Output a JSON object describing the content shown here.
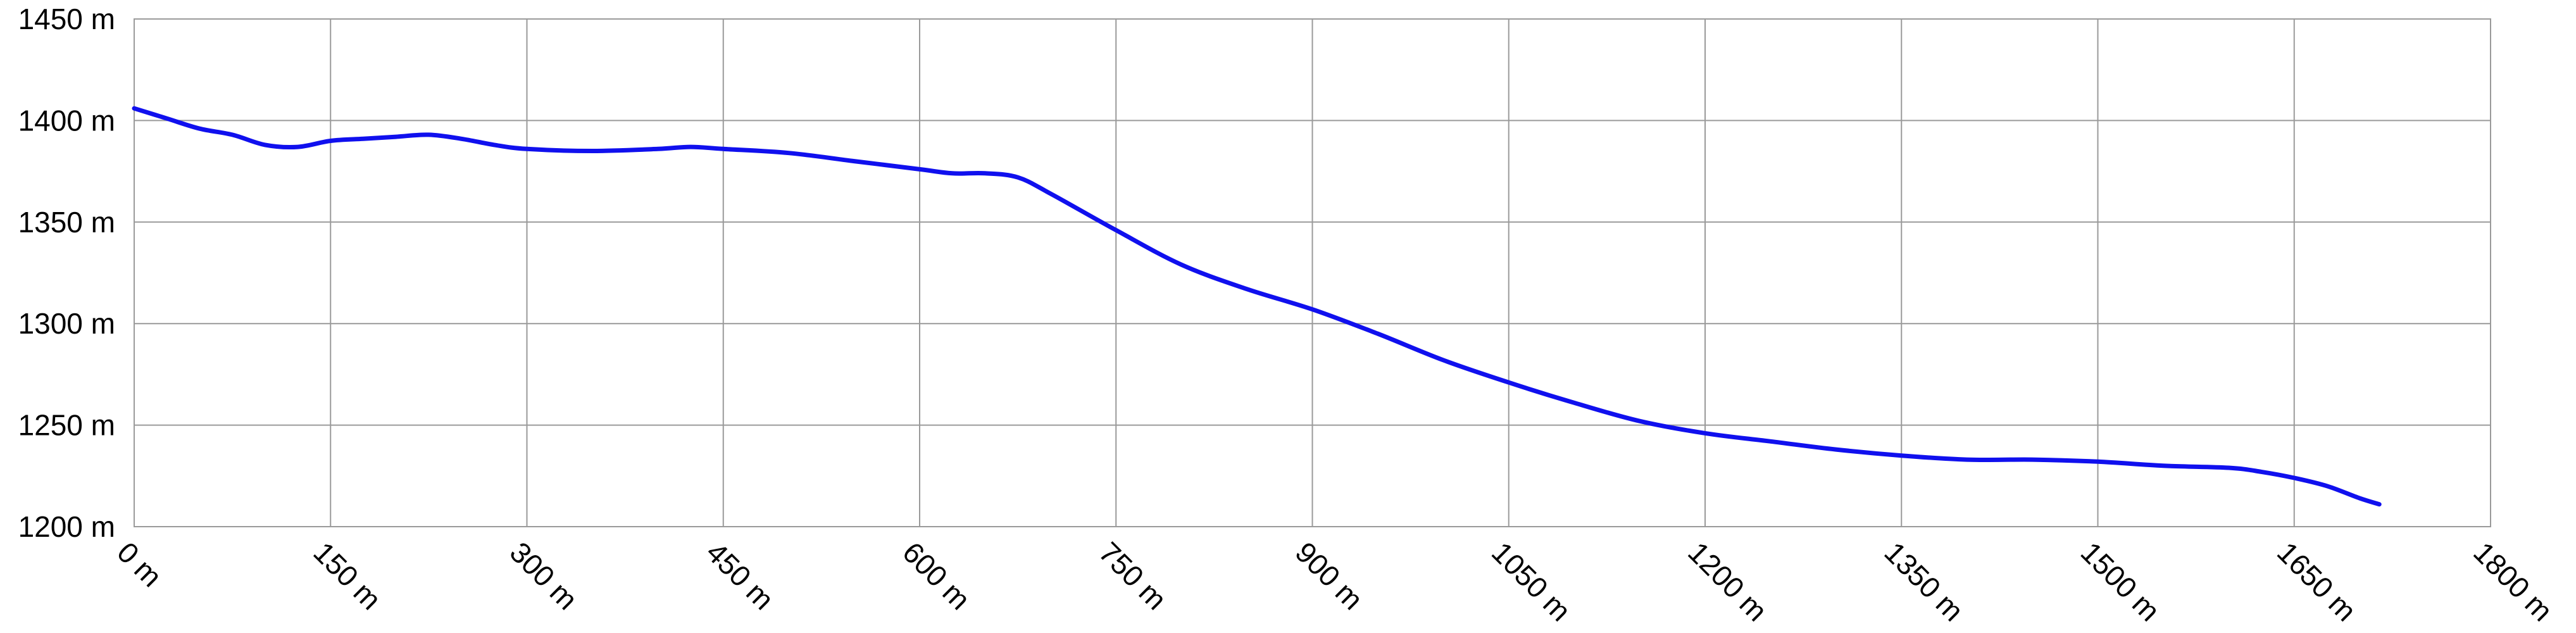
{
  "chart_data": {
    "type": "line",
    "title": "",
    "xlabel": "",
    "ylabel": "",
    "grid": true,
    "legend": "none",
    "colors": {
      "series": "#1010ee",
      "grid": "#9a9a9a",
      "background": "#ffffff"
    },
    "xlim": [
      0,
      1800
    ],
    "ylim": [
      1200,
      1450
    ],
    "x_ticks": [
      0,
      150,
      300,
      450,
      600,
      750,
      900,
      1050,
      1200,
      1350,
      1500,
      1650,
      1800
    ],
    "x_tick_labels": [
      "0 m",
      "150 m",
      "300 m",
      "450 m",
      "600 m",
      "750 m",
      "900 m",
      "1050 m",
      "1200 m",
      "1350 m",
      "1500 m",
      "1650 m",
      "1800 m"
    ],
    "y_ticks": [
      1200,
      1250,
      1300,
      1350,
      1400,
      1450
    ],
    "y_tick_labels": [
      "1200 m",
      "1250 m",
      "1300 m",
      "1350 m",
      "1400 m",
      "1450 m"
    ],
    "series": [
      {
        "x": [
          0,
          25,
          50,
          75,
          100,
          125,
          150,
          175,
          200,
          225,
          250,
          275,
          300,
          350,
          400,
          425,
          450,
          500,
          550,
          600,
          625,
          650,
          675,
          700,
          750,
          800,
          850,
          900,
          950,
          1000,
          1050,
          1100,
          1150,
          1200,
          1250,
          1300,
          1350,
          1400,
          1450,
          1500,
          1550,
          1600,
          1625,
          1650,
          1675,
          1700,
          1715
        ],
        "y": [
          1406,
          1401,
          1396,
          1393,
          1388,
          1387,
          1390,
          1391,
          1392,
          1393,
          1391,
          1388,
          1386,
          1385,
          1386,
          1387,
          1386,
          1384,
          1380,
          1376,
          1374,
          1374,
          1372,
          1364,
          1346,
          1329,
          1317,
          1307,
          1295,
          1282,
          1271,
          1261,
          1252,
          1246,
          1242,
          1238,
          1235,
          1233,
          1233,
          1232,
          1230,
          1229,
          1227,
          1224,
          1220,
          1214,
          1211
        ]
      }
    ]
  }
}
